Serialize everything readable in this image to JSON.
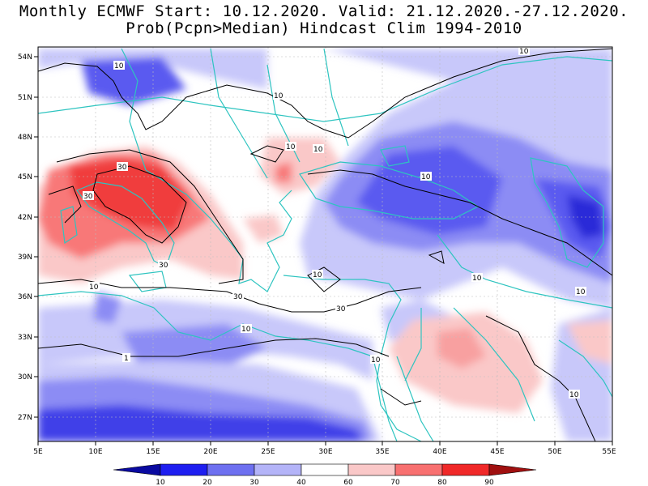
{
  "title": {
    "line1": "Monthly ECMWF Start: 10.12.2020. Valid: 21.12.2020.-27.12.2020.",
    "line2": "Prob(Pcpn>Median) Hindcast Clim 1994-2010"
  },
  "axes": {
    "lat_labels": [
      "54N",
      "51N",
      "48N",
      "45N",
      "42N",
      "39N",
      "36N",
      "33N",
      "30N",
      "27N"
    ],
    "lon_labels": [
      "5E",
      "10E",
      "15E",
      "20E",
      "25E",
      "30E",
      "35E",
      "40E",
      "45E",
      "50E",
      "55E"
    ]
  },
  "contour_labels": [
    "10",
    "10",
    "10",
    "10",
    "10",
    "30",
    "30",
    "30",
    "30",
    "30",
    "10",
    "10",
    "10",
    "10",
    "10",
    "10",
    "10",
    "10",
    "1"
  ],
  "colorbar": {
    "labels": [
      "10",
      "20",
      "30",
      "40",
      "60",
      "70",
      "80",
      "90"
    ],
    "colors": [
      "#0a0aa0",
      "#1e1ef0",
      "#6e70f0",
      "#b4b4f8",
      "#ffffff",
      "#fac8c8",
      "#f87070",
      "#f02828",
      "#a01010"
    ]
  },
  "colors": {
    "coast": "#2ec4c0",
    "contour": "#000000",
    "grid": "#bdbdbd"
  }
}
